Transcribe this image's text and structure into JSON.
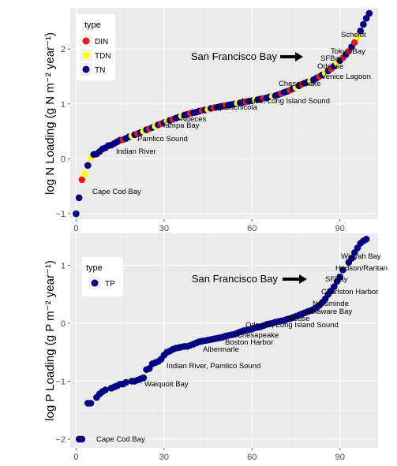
{
  "chart_data": [
    {
      "type": "scatter",
      "ylabel": "log N Loading (g N m⁻² year⁻¹)",
      "xlim": [
        -2,
        103
      ],
      "ylim": [
        -1.1,
        2.75
      ],
      "xticks": [
        0,
        30,
        60,
        90
      ],
      "yticks": [
        -1,
        0,
        1,
        2
      ],
      "grid": true,
      "legend": {
        "title": "type",
        "entries": [
          "DIN",
          "TDN",
          "TN"
        ],
        "position": "top-left"
      },
      "colors": {
        "DIN": "#e41a1c",
        "TDN": "#ffff00",
        "TN": "#000080"
      },
      "highlight": {
        "label": "San Francisco Bay",
        "x": 89,
        "y": 1.88
      },
      "annotations": [
        {
          "text": "Scheldt",
          "x": 98,
          "y": 2.27
        },
        {
          "text": "Tokyo Bay",
          "x": 94,
          "y": 1.96
        },
        {
          "text": "SFBay",
          "x": 90,
          "y": 1.82
        },
        {
          "text": "Odense",
          "x": 89,
          "y": 1.66
        },
        {
          "text": "Venice Lagoon",
          "x": 90,
          "y": 1.46
        },
        {
          "text": "Chesapeake",
          "x": 74,
          "y": 1.3
        },
        {
          "text": "Neuse, Long Island Sound",
          "x": 60,
          "y": 1.01
        },
        {
          "text": "Apalachicola",
          "x": 50,
          "y": 0.88
        },
        {
          "text": "Nueces",
          "x": 33,
          "y": 0.65
        },
        {
          "text": "Tampa Bay",
          "x": 29,
          "y": 0.51
        },
        {
          "text": "Pamlico Sound",
          "x": 21,
          "y": 0.25
        },
        {
          "text": "Indian River",
          "x": 12,
          "y": 0.01
        },
        {
          "text": "Cape Cod Bay",
          "x": 3,
          "y": -0.71
        }
      ],
      "points": [
        [
          0,
          -1.0,
          "TN"
        ],
        [
          1,
          -0.71,
          "TN"
        ],
        [
          2,
          -0.38,
          "DIN"
        ],
        [
          3,
          -0.28,
          "TDN"
        ],
        [
          4,
          -0.12,
          "TN"
        ],
        [
          5,
          0.02,
          "TDN"
        ],
        [
          6,
          0.08,
          "TN"
        ],
        [
          7,
          0.09,
          "TN"
        ],
        [
          8,
          0.13,
          "TN"
        ],
        [
          9,
          0.18,
          "TN"
        ],
        [
          10,
          0.2,
          "TN"
        ],
        [
          11,
          0.24,
          "TN"
        ],
        [
          12,
          0.25,
          "TN"
        ],
        [
          13,
          0.28,
          "TN"
        ],
        [
          14,
          0.31,
          "TN"
        ],
        [
          15,
          0.34,
          "TN"
        ],
        [
          16,
          0.35,
          "DIN"
        ],
        [
          17,
          0.37,
          "TN"
        ],
        [
          18,
          0.4,
          "TN"
        ],
        [
          19,
          0.42,
          "TDN"
        ],
        [
          20,
          0.44,
          "TN"
        ],
        [
          21,
          0.46,
          "DIN"
        ],
        [
          22,
          0.48,
          "TN"
        ],
        [
          23,
          0.5,
          "TDN"
        ],
        [
          24,
          0.53,
          "TN"
        ],
        [
          25,
          0.55,
          "DIN"
        ],
        [
          26,
          0.57,
          "TN"
        ],
        [
          27,
          0.59,
          "TDN"
        ],
        [
          28,
          0.62,
          "TN"
        ],
        [
          29,
          0.64,
          "DIN"
        ],
        [
          30,
          0.66,
          "TN"
        ],
        [
          31,
          0.68,
          "TDN"
        ],
        [
          32,
          0.7,
          "TN"
        ],
        [
          33,
          0.72,
          "DIN"
        ],
        [
          34,
          0.74,
          "TN"
        ],
        [
          35,
          0.76,
          "TN"
        ],
        [
          36,
          0.78,
          "TDN"
        ],
        [
          37,
          0.8,
          "TN"
        ],
        [
          38,
          0.81,
          "TN"
        ],
        [
          39,
          0.83,
          "DIN"
        ],
        [
          40,
          0.84,
          "TN"
        ],
        [
          41,
          0.85,
          "TN"
        ],
        [
          42,
          0.87,
          "TN"
        ],
        [
          43,
          0.88,
          "DIN"
        ],
        [
          44,
          0.89,
          "TN"
        ],
        [
          45,
          0.9,
          "TDN"
        ],
        [
          46,
          0.92,
          "TN"
        ],
        [
          47,
          0.93,
          "DIN"
        ],
        [
          48,
          0.94,
          "TN"
        ],
        [
          49,
          0.95,
          "TN"
        ],
        [
          50,
          0.96,
          "TN"
        ],
        [
          51,
          0.97,
          "DIN"
        ],
        [
          52,
          0.98,
          "TN"
        ],
        [
          53,
          0.99,
          "TN"
        ],
        [
          54,
          1.0,
          "TN"
        ],
        [
          55,
          1.01,
          "TDN"
        ],
        [
          56,
          1.02,
          "TN"
        ],
        [
          57,
          1.03,
          "TN"
        ],
        [
          58,
          1.04,
          "DIN"
        ],
        [
          59,
          1.05,
          "TN"
        ],
        [
          60,
          1.06,
          "TN"
        ],
        [
          61,
          1.07,
          "TDN"
        ],
        [
          62,
          1.08,
          "TN"
        ],
        [
          63,
          1.09,
          "TN"
        ],
        [
          64,
          1.1,
          "DIN"
        ],
        [
          65,
          1.11,
          "TN"
        ],
        [
          66,
          1.13,
          "TN"
        ],
        [
          67,
          1.14,
          "TDN"
        ],
        [
          68,
          1.15,
          "TN"
        ],
        [
          69,
          1.17,
          "TN"
        ],
        [
          70,
          1.19,
          "DIN"
        ],
        [
          71,
          1.21,
          "TN"
        ],
        [
          72,
          1.23,
          "TN"
        ],
        [
          73,
          1.25,
          "DIN"
        ],
        [
          74,
          1.28,
          "TN"
        ],
        [
          75,
          1.3,
          "TDN"
        ],
        [
          76,
          1.33,
          "TN"
        ],
        [
          77,
          1.36,
          "DIN"
        ],
        [
          78,
          1.38,
          "TN"
        ],
        [
          79,
          1.4,
          "TN"
        ],
        [
          80,
          1.42,
          "TDN"
        ],
        [
          81,
          1.44,
          "TN"
        ],
        [
          82,
          1.47,
          "TN"
        ],
        [
          83,
          1.5,
          "DIN"
        ],
        [
          84,
          1.53,
          "TN"
        ],
        [
          85,
          1.56,
          "TDN"
        ],
        [
          86,
          1.6,
          "TN"
        ],
        [
          87,
          1.64,
          "DIN"
        ],
        [
          88,
          1.69,
          "TN"
        ],
        [
          89,
          1.74,
          "TDN"
        ],
        [
          90,
          1.79,
          "TN"
        ],
        [
          91,
          1.84,
          "DIN"
        ],
        [
          92,
          1.9,
          "TN"
        ],
        [
          93,
          1.96,
          "DIN"
        ],
        [
          94,
          2.04,
          "TN"
        ],
        [
          95,
          2.12,
          "DIN"
        ],
        [
          96,
          2.22,
          "TDN"
        ],
        [
          97,
          2.33,
          "TN"
        ],
        [
          98,
          2.45,
          "TN"
        ],
        [
          99,
          2.56,
          "TN"
        ],
        [
          100,
          2.65,
          "TN"
        ]
      ]
    },
    {
      "type": "scatter",
      "ylabel": "log P Loading (g P m⁻² year⁻¹)",
      "xlim": [
        -2,
        103
      ],
      "ylim": [
        -2.15,
        1.55
      ],
      "xticks": [
        0,
        30,
        60,
        90
      ],
      "yticks": [
        -2,
        -1,
        0,
        1
      ],
      "grid": true,
      "legend": {
        "title": "type",
        "entries": [
          "TP"
        ],
        "position": "top-left"
      },
      "colors": {
        "TP": "#000080"
      },
      "highlight": {
        "label": "San Francisco Bay",
        "x": 89,
        "y": 0.85
      },
      "annotations": [
        {
          "text": "Winyah Bay",
          "x": 98,
          "y": 1.27
        },
        {
          "text": "Hudson/Raritan",
          "x": 96,
          "y": 1.06
        },
        {
          "text": "SFBay",
          "x": 93,
          "y": 0.86
        },
        {
          "text": "Charlston Harbor",
          "x": 90,
          "y": 0.64
        },
        {
          "text": "Norsminde",
          "x": 86,
          "y": 0.42
        },
        {
          "text": "Delaware Bay",
          "x": 84,
          "y": 0.26
        },
        {
          "text": "Neuse",
          "x": 78,
          "y": 0.13
        },
        {
          "text": "Odense, Long Island Sound",
          "x": 69,
          "y": 0.03
        },
        {
          "text": "Chesapeake",
          "x": 57,
          "y": -0.16
        },
        {
          "text": "Boston Harbor",
          "x": 53,
          "y": -0.28
        },
        {
          "text": "Albermarle",
          "x": 45,
          "y": -0.42
        },
        {
          "text": "Indian River, Pamlico Sound",
          "x": 31,
          "y": -0.68
        },
        {
          "text": "Waiquoit Bay",
          "x": 22,
          "y": -1.05
        },
        {
          "text": "Cape Cod Bay",
          "x": 4,
          "y": -2.0
        }
      ],
      "points": [
        [
          1,
          -2.0
        ],
        [
          2,
          -2.0
        ],
        [
          4,
          -1.38
        ],
        [
          5,
          -1.38
        ],
        [
          7,
          -1.28
        ],
        [
          8,
          -1.22
        ],
        [
          9,
          -1.18
        ],
        [
          10,
          -1.15
        ],
        [
          12,
          -1.12
        ],
        [
          13,
          -1.1
        ],
        [
          14,
          -1.08
        ],
        [
          15,
          -1.05
        ],
        [
          16,
          -1.05
        ],
        [
          17,
          -1.02
        ],
        [
          19,
          -1.0
        ],
        [
          20,
          -1.0
        ],
        [
          21,
          -0.98
        ],
        [
          22,
          -0.96
        ],
        [
          23,
          -0.94
        ],
        [
          24,
          -0.8
        ],
        [
          25,
          -0.78
        ],
        [
          26,
          -0.7
        ],
        [
          27,
          -0.68
        ],
        [
          28,
          -0.66
        ],
        [
          29,
          -0.62
        ],
        [
          30,
          -0.55
        ],
        [
          31,
          -0.5
        ],
        [
          32,
          -0.48
        ],
        [
          33,
          -0.45
        ],
        [
          34,
          -0.43
        ],
        [
          35,
          -0.42
        ],
        [
          36,
          -0.41
        ],
        [
          37,
          -0.4
        ],
        [
          38,
          -0.4
        ],
        [
          39,
          -0.38
        ],
        [
          40,
          -0.36
        ],
        [
          41,
          -0.34
        ],
        [
          42,
          -0.32
        ],
        [
          43,
          -0.31
        ],
        [
          44,
          -0.3
        ],
        [
          45,
          -0.29
        ],
        [
          46,
          -0.28
        ],
        [
          47,
          -0.27
        ],
        [
          48,
          -0.26
        ],
        [
          49,
          -0.25
        ],
        [
          50,
          -0.24
        ],
        [
          51,
          -0.22
        ],
        [
          52,
          -0.21
        ],
        [
          53,
          -0.2
        ],
        [
          54,
          -0.19
        ],
        [
          55,
          -0.17
        ],
        [
          56,
          -0.15
        ],
        [
          57,
          -0.13
        ],
        [
          58,
          -0.12
        ],
        [
          59,
          -0.11
        ],
        [
          60,
          -0.1
        ],
        [
          61,
          -0.08
        ],
        [
          62,
          -0.07
        ],
        [
          63,
          -0.06
        ],
        [
          64,
          -0.04
        ],
        [
          65,
          -0.02
        ],
        [
          66,
          -0.01
        ],
        [
          67,
          0.0
        ],
        [
          68,
          0.02
        ],
        [
          69,
          0.03
        ],
        [
          70,
          0.04
        ],
        [
          71,
          0.05
        ],
        [
          72,
          0.07
        ],
        [
          73,
          0.08
        ],
        [
          74,
          0.1
        ],
        [
          75,
          0.12
        ],
        [
          76,
          0.14
        ],
        [
          77,
          0.16
        ],
        [
          78,
          0.18
        ],
        [
          79,
          0.2
        ],
        [
          80,
          0.22
        ],
        [
          81,
          0.24
        ],
        [
          82,
          0.27
        ],
        [
          83,
          0.31
        ],
        [
          84,
          0.36
        ],
        [
          85,
          0.42
        ],
        [
          86,
          0.5
        ],
        [
          87,
          0.56
        ],
        [
          88,
          0.63
        ],
        [
          89,
          0.72
        ],
        [
          90,
          0.8
        ],
        [
          91,
          0.92
        ],
        [
          93,
          1.05
        ],
        [
          94,
          1.12
        ],
        [
          95,
          1.22
        ],
        [
          96,
          1.3
        ],
        [
          97,
          1.38
        ],
        [
          98,
          1.42
        ],
        [
          99,
          1.45
        ]
      ]
    }
  ]
}
